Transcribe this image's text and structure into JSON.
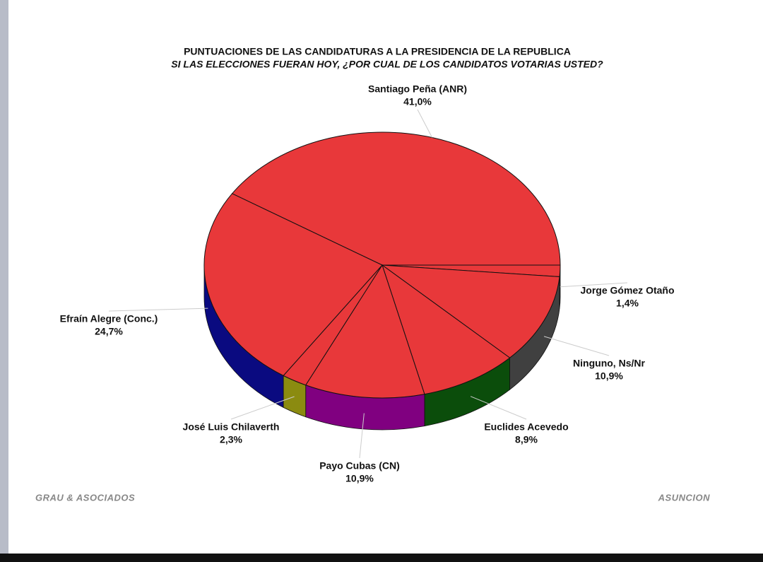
{
  "chart_data": {
    "type": "pie3d",
    "title": "PUNTUACIONES DE LAS CANDIDATURAS A LA PRESIDENCIA DE LA REPUBLICA",
    "subtitle": "SI LAS ELECCIONES FUERAN HOY, ¿POR CUAL DE LOS CANDIDATOS VOTARIAS USTED?",
    "categories": [
      "Santiago Peña (ANR)",
      "Jorge Gómez Otaño",
      "Ninguno, Ns/Nr",
      "Euclides Acevedo",
      "Payo Cubas (CN)",
      "José Luis Chilaverth",
      "Efraín Alegre (Conc.)"
    ],
    "values": [
      41.0,
      1.4,
      10.9,
      8.9,
      10.9,
      2.3,
      24.7
    ],
    "value_labels": [
      "41,0%",
      "1,4%",
      "10,9%",
      "8,9%",
      "10,9%",
      "2,3%",
      "24,7%"
    ],
    "top_color": "#e8383a",
    "side_colors": [
      "#b02020",
      "#555555",
      "#404040",
      "#0b4d0b",
      "#800080",
      "#8b8b10",
      "#0a0a80"
    ],
    "footer_left": "GRAU & ASOCIADOS",
    "footer_right": "ASUNCION"
  }
}
